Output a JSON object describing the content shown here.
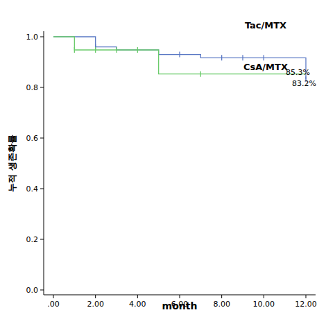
{
  "chart_data": {
    "type": "line",
    "line_style": "step",
    "x_label": "month",
    "y_label": "누적 생존확률",
    "xlim": [
      0,
      12
    ],
    "ylim": [
      0,
      1
    ],
    "xticks": [
      {
        "value": 0,
        "label": ".00"
      },
      {
        "value": 2,
        "label": "2.00"
      },
      {
        "value": 4,
        "label": "4.00"
      },
      {
        "value": 6,
        "label": "6.00"
      },
      {
        "value": 8,
        "label": "8.00"
      },
      {
        "value": 10,
        "label": "10.00"
      },
      {
        "value": 12,
        "label": "12.00"
      }
    ],
    "yticks": [
      {
        "value": 0,
        "label": "0.0"
      },
      0.2,
      0.4,
      0.6,
      0.8,
      {
        "value": 1,
        "label": "1.0"
      }
    ],
    "grid": false,
    "series": [
      {
        "name": "Tac/MTX",
        "color": "#5a78c4",
        "x": [
          0,
          2,
          3,
          5,
          7,
          12
        ],
        "values": [
          1.0,
          0.96,
          0.948,
          0.93,
          0.917,
          0.832
        ],
        "censored": [
          2,
          6,
          8,
          9,
          10,
          12
        ],
        "end_label": "83.2%"
      },
      {
        "name": "CsA/MTX",
        "color": "#6acb6a",
        "x": [
          0,
          1,
          5,
          12
        ],
        "values": [
          1.0,
          0.948,
          0.853,
          0.853
        ],
        "censored": [
          1,
          2,
          3,
          4,
          7
        ],
        "end_label": "85.3%"
      }
    ]
  }
}
